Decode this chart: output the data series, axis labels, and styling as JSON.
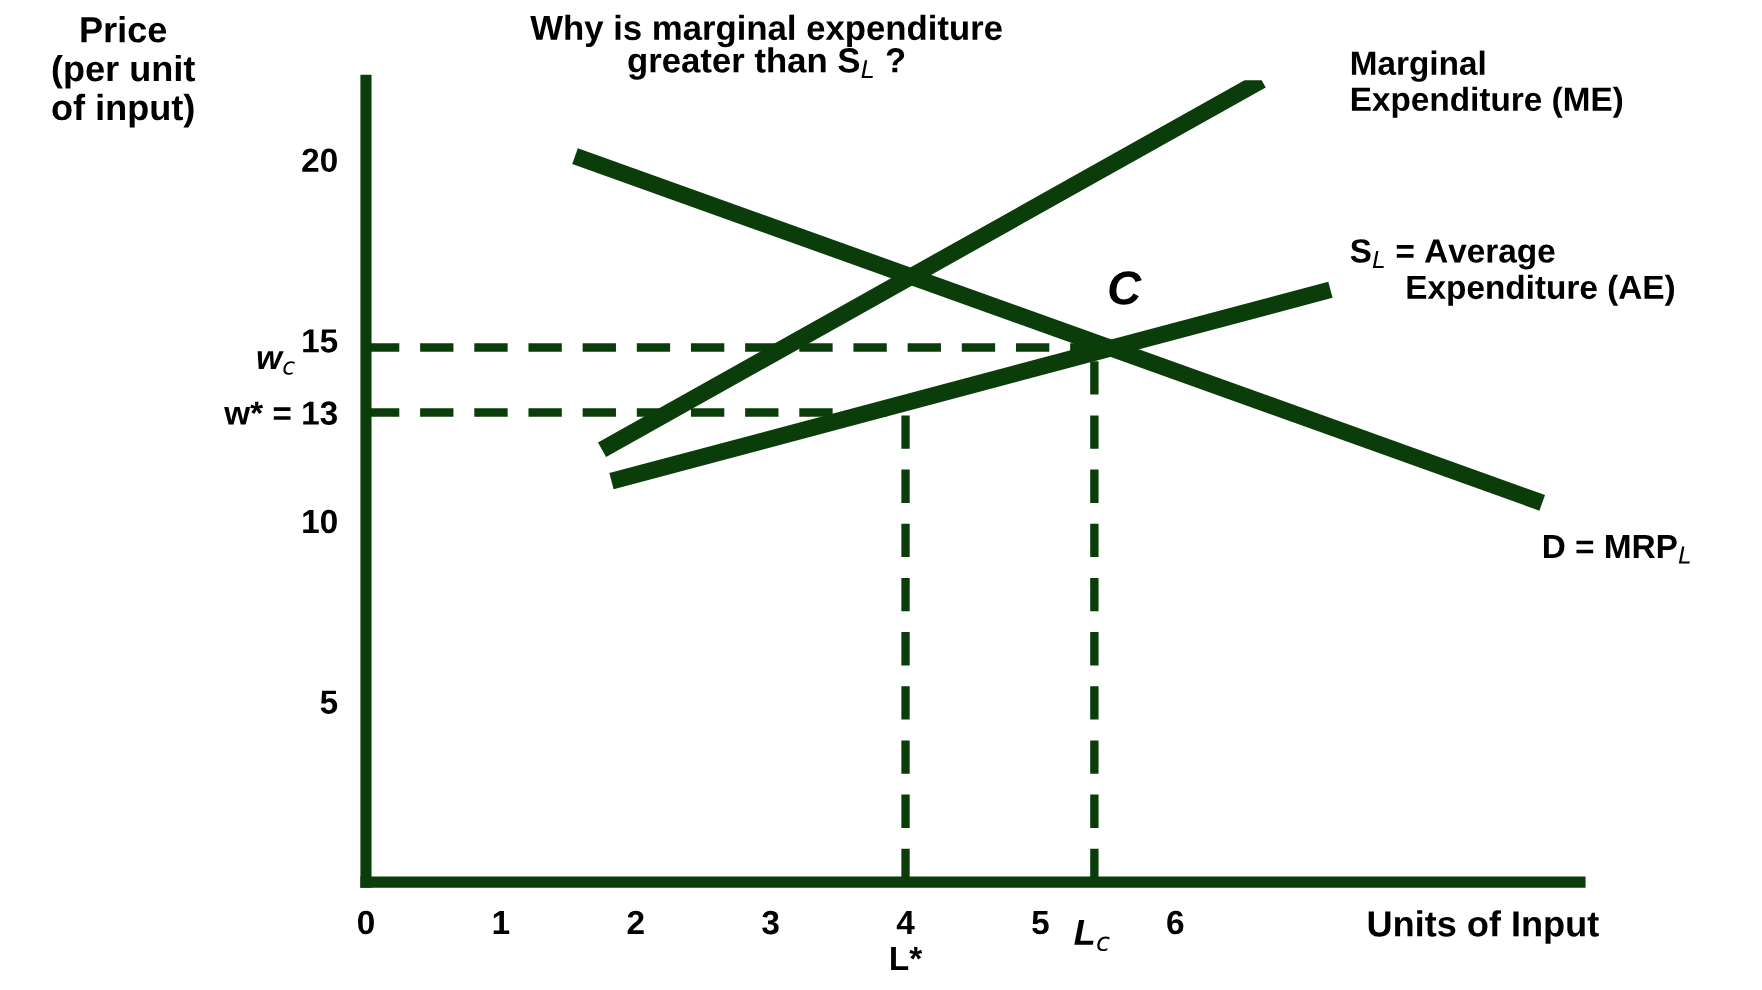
{
  "chart_data": {
    "type": "line",
    "title": "Why is marginal expenditure\ngreater than S$_{L}$ ?",
    "xlabel": "Units of Input",
    "ylabel": "Price\n(per unit\nof input)",
    "xlim": [
      0,
      9
    ],
    "ylim": [
      0,
      22.2
    ],
    "xticks": [
      0,
      1,
      2,
      3,
      {
        "value": 4,
        "label": "4\nL*"
      },
      5,
      6
    ],
    "yticks": [
      5,
      10,
      {
        "value": 13,
        "label": "w* = 13"
      },
      15,
      20
    ],
    "grid": false,
    "legend": false,
    "marker": "none",
    "series": [
      {
        "x": [
          1.75,
          6.64
        ],
        "values": [
          11.97,
          22.2
        ],
        "color": "#0b3d0b",
        "line_style": "solid"
      },
      {
        "x": [
          1.82,
          7.15
        ],
        "values": [
          11.1,
          16.4
        ],
        "color": "#0b3d0b",
        "line_style": "solid"
      },
      {
        "x": [
          1.55,
          8.72
        ],
        "values": [
          20.1,
          10.5
        ],
        "color": "#0b3d0b",
        "line_style": "solid"
      },
      {
        "x": [
          0,
          4
        ],
        "values": [
          13,
          13
        ],
        "color": "#0b3d0b",
        "line_style": "dashed"
      },
      {
        "x": [
          4,
          4
        ],
        "values": [
          0,
          13
        ],
        "color": "#0b3d0b",
        "line_style": "dashed"
      },
      {
        "x": [
          0,
          5.4
        ],
        "values": [
          14.8,
          14.8
        ],
        "color": "#0b3d0b",
        "line_style": "dashed"
      },
      {
        "x": [
          5.4,
          5.4
        ],
        "values": [
          0,
          14.8
        ],
        "color": "#0b3d0b",
        "line_style": "dashed"
      }
    ],
    "annotations": [
      "C",
      "Marginal\nExpenditure (ME)",
      "S$_{L}$ = Average\n      Expenditure (AE)",
      "D = MRP$_{L}$",
      "L$_{c}$",
      "w$_{c}$"
    ]
  }
}
